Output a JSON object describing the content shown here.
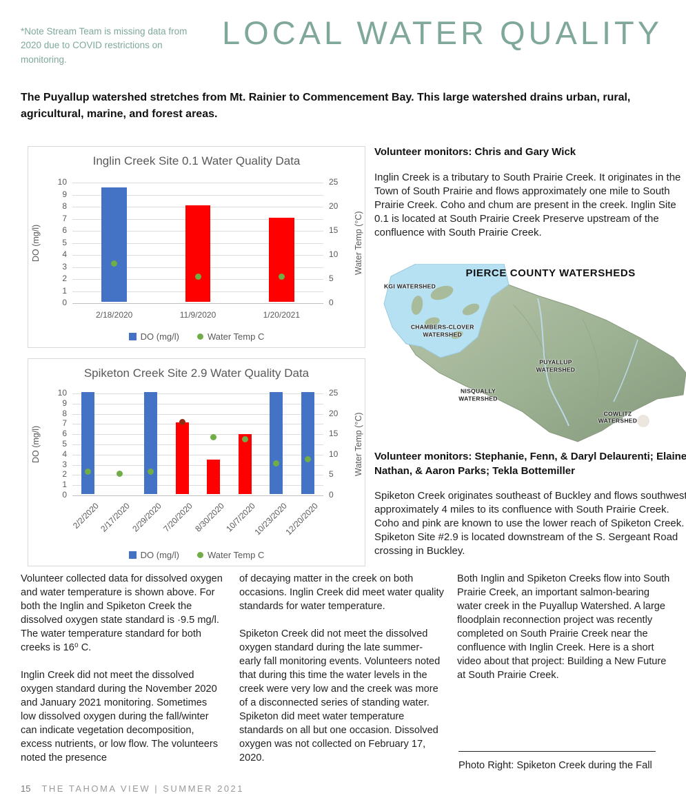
{
  "page": {
    "note": "*Note Stream Team is missing data from 2020 due to COVID restrictions on monitoring.",
    "title": "LOCAL WATER QUALITY",
    "intro": "The Puyallup watershed stretches from Mt. Rainier to Commencement Bay. This large watershed drains urban, rural, agricultural, marine, and forest areas.",
    "footer": {
      "page_number": "15",
      "publication": "THE TAHOMA VIEW | SUMMER 2021"
    }
  },
  "right_column": {
    "monitors_1": "Volunteer monitors: Chris and Gary Wick",
    "inglin_paragraph": "Inglin Creek is a tributary to South Prairie Creek. It originates in the Town of South Prairie and flows approximately one mile to South Prairie Creek. Coho and chum are present in the creek. Inglin Site 0.1 is located at South Prairie Creek Preserve upstream of the confluence with South Prairie Creek.",
    "map": {
      "title": "PIERCE COUNTY WATERSHEDS",
      "labels": [
        "KGI WATERSHED",
        "CHAMBERS-CLOVER WATERSHED",
        "PUYALLUP WATERSHED",
        "NISQUALLY WATERSHED",
        "COWLITZ WATERSHED"
      ]
    },
    "monitors_2": "Volunteer monitors: Stephanie, Fenn, & Daryl Delaurenti; Elaine, Nathan, & Aaron Parks; Tekla Bottemiller",
    "spiketon_paragraph": "Spiketon Creek originates southeast of Buckley and flows southwest approximately 4 miles to its confluence with South Prairie Creek. Coho and pink are known to use the lower reach of Spiketon Creek. Spiketon Site #2.9 is located downstream of the S. Sergeant Road crossing in Buckley."
  },
  "columns": {
    "col1": [
      "Volunteer collected data for dissolved oxygen and water temperature is shown above. For both the Inglin and Spiketon Creek the dissolved oxygen state standard is ·9.5 mg/l. The water temperature standard for both creeks is 16⁰ C.",
      "Inglin Creek did not meet the dissolved oxygen standard during the November 2020 and January 2021 monitoring. Sometimes low dissolved oxygen during the fall/winter can indicate vegetation decomposition, excess nutrients, or low flow. The volunteers noted the presence"
    ],
    "col2": [
      "of decaying matter in the creek on both occasions. Inglin Creek did meet water quality standards for water temperature.",
      "Spiketon Creek did not meet the dissolved oxygen standard during the late summer- early fall monitoring events. Volunteers noted that during this time the water levels in the creek were very low and the creek was more of a disconnected series of standing water. Spiketon did meet water temperature standards on all but one occasion. Dissolved oxygen was not collected on February 17, 2020."
    ],
    "col3": [
      "Both Inglin and Spiketon Creeks flow into South Prairie Creek, an important salmon-bearing water creek in the Puyallup Watershed. A large floodplain reconnection project was recently completed on South Prairie Creek near the confluence with Inglin Creek. Here is a short video about that project: Building a New Future at South Prairie Creek."
    ],
    "photo_caption": "Photo Right: Spiketon Creek during the Fall"
  },
  "colors": {
    "accent_teal": "#7fa89b",
    "chart_text": "#595959",
    "bar_blue": "#4472C4",
    "bar_red": "#FF0000",
    "dot_green": "#70AD47",
    "dot_dark_red": "#8E2F15"
  },
  "chart_data": [
    {
      "type": "bar",
      "title": "Inglin Creek Site 0.1 Water Quality Data",
      "categories": [
        "2/18/2020",
        "11/9/2020",
        "1/20/2021"
      ],
      "series": [
        {
          "name": "DO (mg/l)",
          "type": "bar",
          "axis": "left",
          "values": [
            9.5,
            8,
            7
          ],
          "colors": [
            "#4472C4",
            "#FF0000",
            "#FF0000"
          ]
        },
        {
          "name": "Water Temp C",
          "type": "scatter",
          "axis": "right",
          "values": [
            8.2,
            5.5,
            5.5
          ],
          "colors": [
            "#70AD47",
            "#70AD47",
            "#70AD47"
          ]
        }
      ],
      "left_axis": {
        "label": "DO (mg/l)",
        "min": 0,
        "max": 10,
        "step": 1
      },
      "right_axis": {
        "label": "Water Temp (°C)",
        "min": 0,
        "max": 25,
        "step": 5
      },
      "legend": [
        {
          "label": "DO (mg/l)",
          "marker": "square",
          "color": "#4472C4"
        },
        {
          "label": "Water Temp C",
          "marker": "circle",
          "color": "#70AD47"
        }
      ],
      "grid": true,
      "legend_position": "bottom",
      "x_label_rotation": 0,
      "bar_pct": 0.3
    },
    {
      "type": "bar",
      "title": "Spiketon Creek Site 2.9 Water Quality Data",
      "categories": [
        "2/2/2020",
        "2/17/2020",
        "2/29/2020",
        "7/20/2020",
        "8/30/2020",
        "10/7/2020",
        "10/23/2020",
        "12/20/2020"
      ],
      "series": [
        {
          "name": "DO (mg/l)",
          "type": "bar",
          "axis": "left",
          "values": [
            10,
            null,
            10,
            7,
            3.4,
            5.9,
            10,
            10
          ],
          "colors": [
            "#4472C4",
            null,
            "#4472C4",
            "#FF0000",
            "#FF0000",
            "#FF0000",
            "#4472C4",
            "#4472C4"
          ]
        },
        {
          "name": "Water Temp C",
          "type": "scatter",
          "axis": "right",
          "values": [
            5.8,
            5.4,
            5.9,
            18,
            14.3,
            13.8,
            7.8,
            8.8
          ],
          "colors": [
            "#70AD47",
            "#70AD47",
            "#70AD47",
            "#8E2F15",
            "#70AD47",
            "#70AD47",
            "#70AD47",
            "#70AD47"
          ]
        }
      ],
      "left_axis": {
        "label": "DO (mg/l)",
        "min": 0,
        "max": 10,
        "step": 1
      },
      "right_axis": {
        "label": "Water Temp (°C)",
        "min": 0,
        "max": 25,
        "step": 5
      },
      "legend": [
        {
          "label": "DO (mg/l)",
          "marker": "square",
          "color": "#4472C4"
        },
        {
          "label": "Water Temp C",
          "marker": "circle",
          "color": "#70AD47"
        }
      ],
      "grid": true,
      "legend_position": "bottom",
      "x_label_rotation": -45,
      "bar_pct": 0.42
    }
  ]
}
